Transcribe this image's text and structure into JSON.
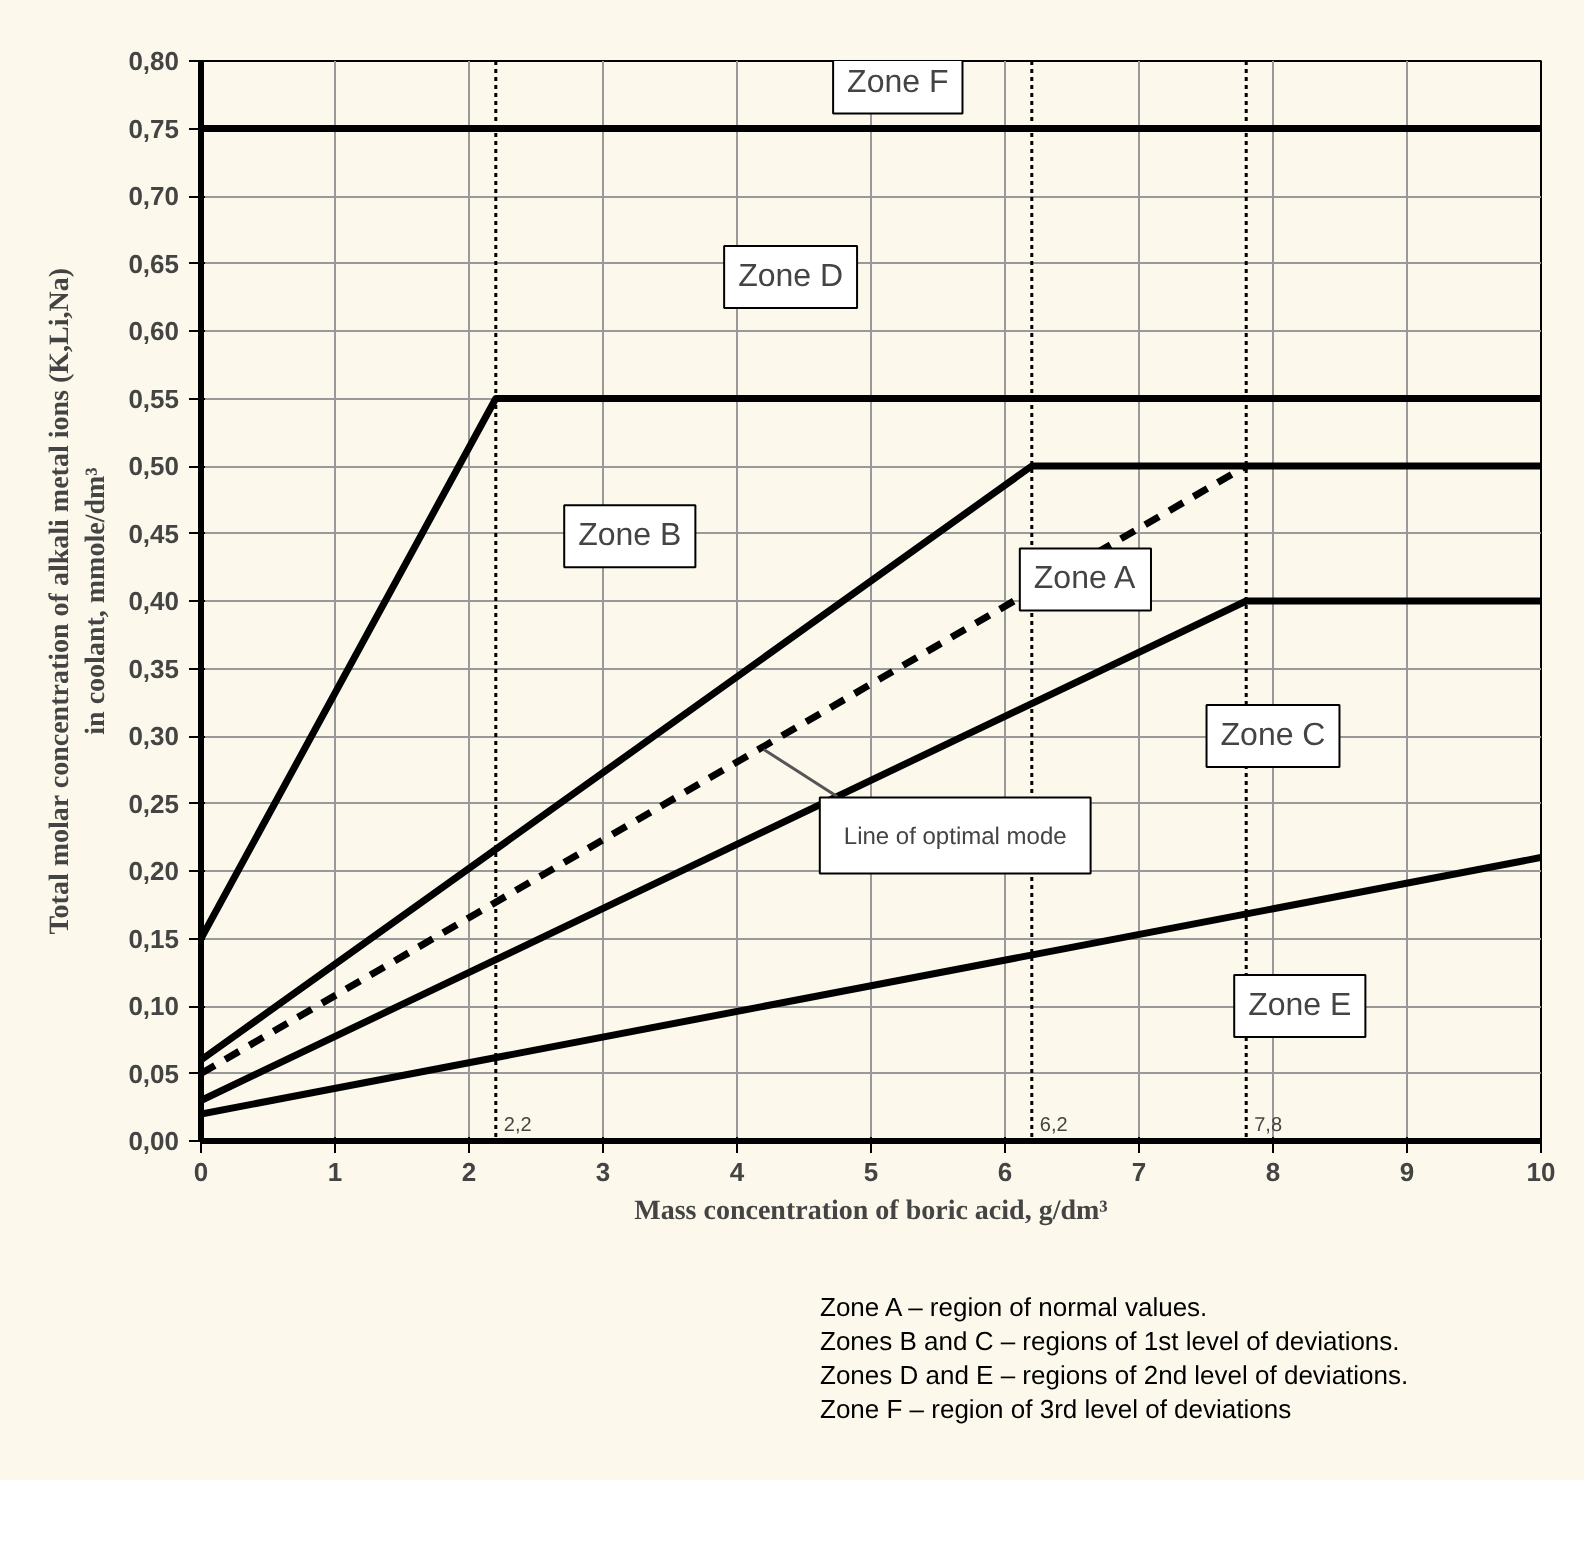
{
  "chart_data": {
    "type": "line",
    "xlabel": "Mass concentration of boric acid, g/dm³",
    "ylabel": "Total molar concentration of alkali metal ions (K,Li,Na) in coolant, mmole/dm³",
    "xlim": [
      0,
      10
    ],
    "ylim": [
      0,
      0.8
    ],
    "xticks": [
      0,
      1,
      2,
      3,
      4,
      5,
      6,
      7,
      8,
      9,
      10
    ],
    "yticks": [
      {
        "value": 0,
        "label": "0,00"
      },
      {
        "value": 0.05,
        "label": "0,05"
      },
      {
        "value": 0.1,
        "label": "0,10"
      },
      {
        "value": 0.15,
        "label": "0,15"
      },
      {
        "value": 0.2,
        "label": "0,20"
      },
      {
        "value": 0.25,
        "label": "0,25"
      },
      {
        "value": 0.3,
        "label": "0,30"
      },
      {
        "value": 0.35,
        "label": "0,35"
      },
      {
        "value": 0.4,
        "label": "0,40"
      },
      {
        "value": 0.45,
        "label": "0,45"
      },
      {
        "value": 0.5,
        "label": "0,50"
      },
      {
        "value": 0.55,
        "label": "0,55"
      },
      {
        "value": 0.6,
        "label": "0,60"
      },
      {
        "value": 0.65,
        "label": "0,65"
      },
      {
        "value": 0.7,
        "label": "0,70"
      },
      {
        "value": 0.75,
        "label": "0,75"
      },
      {
        "value": 0.8,
        "label": "0,80"
      }
    ],
    "grid": true,
    "line_style": "solid",
    "series": [
      {
        "color": "#000000",
        "x": [
          0,
          2.2,
          10
        ],
        "values": [
          0.15,
          0.55,
          0.55
        ]
      },
      {
        "color": "#000000",
        "x": [
          0,
          6.2,
          10
        ],
        "values": [
          0.06,
          0.5,
          0.5
        ]
      },
      {
        "color": "#000000",
        "x": [
          0,
          7.8
        ],
        "values": [
          0.05,
          0.5
        ],
        "line_style": "dashed"
      },
      {
        "color": "#000000",
        "x": [
          0,
          7.8,
          10
        ],
        "values": [
          0.03,
          0.4,
          0.4
        ]
      },
      {
        "color": "#000000",
        "x": [
          0,
          10
        ],
        "values": [
          0.02,
          0.21
        ]
      },
      {
        "color": "#000000",
        "x": [
          0,
          10
        ],
        "values": [
          0.75,
          0.75
        ]
      }
    ],
    "ref_lines": [
      {
        "axis": "x",
        "value": 2.2,
        "label": "2,2",
        "line_style": "dotted"
      },
      {
        "axis": "x",
        "value": 6.2,
        "label": "6,2",
        "line_style": "dotted"
      },
      {
        "axis": "x",
        "value": 7.8,
        "label": "7,8",
        "line_style": "dotted"
      }
    ],
    "annotations": [
      "Zone F",
      "Zone D",
      "Zone B",
      "Zone A",
      "Zone C",
      "Zone E",
      {
        "text": "Line of optimal mode",
        "x": 4.2,
        "y": 0.29
      },
      "Zone A – region of normal values.",
      "Zones B and C – regions of 1st level of deviations.",
      "Zones D and E – regions of 2nd level of deviations.",
      "Zone F – region of 3rd level of deviations"
    ]
  }
}
